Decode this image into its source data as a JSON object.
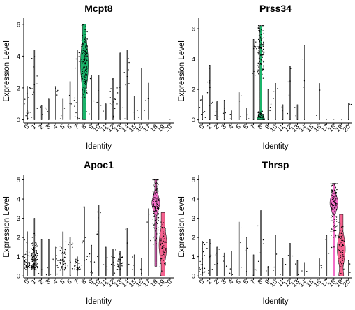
{
  "chart_data": [
    {
      "type": "violin",
      "title": "Mcpt8",
      "xlabel": "Identity",
      "ylabel": "Expression Level",
      "categories": [
        "0",
        "1",
        "2",
        "3",
        "4",
        "5",
        "6",
        "7",
        "8",
        "9",
        "10",
        "11",
        "12",
        "13",
        "14",
        "15",
        "16",
        "17",
        "18",
        "19",
        "20"
      ],
      "ylim": [
        -0.2,
        6.3
      ],
      "yticks": [
        0,
        2,
        4,
        6
      ],
      "colors": {
        "8": "#1bb46a"
      },
      "violins": [
        {
          "cluster": "8",
          "min": 0,
          "max": 6.0,
          "median": 3.5,
          "n": 170
        },
        {
          "cluster": "0",
          "min": 0,
          "max": 2.1,
          "n": 14
        },
        {
          "cluster": "1",
          "min": 0,
          "max": 4.4,
          "n": 12
        },
        {
          "cluster": "2",
          "min": 0,
          "max": 0.9,
          "n": 3
        },
        {
          "cluster": "3",
          "min": 0,
          "max": 1.3,
          "n": 3
        },
        {
          "cluster": "4",
          "min": 0,
          "max": 2.1,
          "n": 5
        },
        {
          "cluster": "5",
          "min": 0,
          "max": 1.3,
          "n": 3
        },
        {
          "cluster": "6",
          "min": 0,
          "max": 2.4,
          "n": 3
        },
        {
          "cluster": "7",
          "min": 0,
          "max": 4.4,
          "n": 14
        },
        {
          "cluster": "9",
          "min": 0,
          "max": 2.8,
          "n": 3
        },
        {
          "cluster": "10",
          "min": 0,
          "max": 2.8,
          "n": 3
        },
        {
          "cluster": "11",
          "min": 0,
          "max": 1.0,
          "n": 2
        },
        {
          "cluster": "12",
          "min": 0,
          "max": 2.6,
          "n": 12
        },
        {
          "cluster": "13",
          "min": 0,
          "max": 4.2,
          "n": 5
        },
        {
          "cluster": "14",
          "min": 0,
          "max": 4.4,
          "n": 8
        },
        {
          "cluster": "15",
          "min": 0,
          "max": 1.5,
          "n": 2
        },
        {
          "cluster": "16",
          "min": 0,
          "max": 3.2,
          "n": 2
        },
        {
          "cluster": "17",
          "min": 0,
          "max": 2.3,
          "n": 2
        }
      ]
    },
    {
      "type": "violin",
      "title": "Prss34",
      "xlabel": "Identity",
      "ylabel": "Expression Level",
      "categories": [
        "0",
        "1",
        "2",
        "3",
        "4",
        "5",
        "6",
        "7",
        "8",
        "9",
        "10",
        "11",
        "12",
        "13",
        "14",
        "15",
        "16",
        "17",
        "18",
        "19",
        "20"
      ],
      "ylim": [
        -0.2,
        6.6
      ],
      "yticks": [
        0,
        2,
        4,
        6
      ],
      "colors": {
        "8": "#1bb46a"
      },
      "violins": [
        {
          "cluster": "8",
          "min": 0,
          "max": 6.2,
          "median": 4.8,
          "n": 150,
          "shape": "bottom-heavy"
        },
        {
          "cluster": "0",
          "min": 0,
          "max": 1.6,
          "n": 8
        },
        {
          "cluster": "1",
          "min": 0,
          "max": 3.6,
          "n": 10
        },
        {
          "cluster": "2",
          "min": 0,
          "max": 1.2,
          "n": 3
        },
        {
          "cluster": "3",
          "min": 0,
          "max": 1.3,
          "n": 3
        },
        {
          "cluster": "4",
          "min": 0,
          "max": 0.6,
          "n": 2
        },
        {
          "cluster": "5",
          "min": 0,
          "max": 1.8,
          "n": 3
        },
        {
          "cluster": "6",
          "min": 0,
          "max": 0.8,
          "n": 2
        },
        {
          "cluster": "7",
          "min": 0,
          "max": 5.3,
          "n": 10
        },
        {
          "cluster": "9",
          "min": 0,
          "max": 2.0,
          "n": 3
        },
        {
          "cluster": "10",
          "min": 0,
          "max": 2.4,
          "n": 3
        },
        {
          "cluster": "11",
          "min": 0,
          "max": 1.0,
          "n": 2
        },
        {
          "cluster": "12",
          "min": 0,
          "max": 3.5,
          "n": 5
        },
        {
          "cluster": "13",
          "min": 0,
          "max": 1.0,
          "n": 2
        },
        {
          "cluster": "14",
          "min": 0,
          "max": 4.9,
          "n": 3
        },
        {
          "cluster": "16",
          "min": 0,
          "max": 2.4,
          "n": 2
        },
        {
          "cluster": "20",
          "min": 0,
          "max": 1.1,
          "n": 2
        }
      ]
    },
    {
      "type": "violin",
      "title": "Apoc1",
      "xlabel": "Identity",
      "ylabel": "Expression Level",
      "categories": [
        "0",
        "1",
        "2",
        "3",
        "4",
        "5",
        "6",
        "7",
        "8",
        "9",
        "10",
        "11",
        "12",
        "13",
        "14",
        "15",
        "16",
        "17",
        "18",
        "19",
        "20"
      ],
      "ylim": [
        -0.1,
        5.2
      ],
      "yticks": [
        0,
        1,
        2,
        3,
        4,
        5
      ],
      "colors": {
        "18": "#f26fc8",
        "19": "#f5628f"
      },
      "violins": [
        {
          "cluster": "18",
          "min": 0.5,
          "max": 5.0,
          "median": 3.8,
          "n": 140,
          "shape": "top-heavy"
        },
        {
          "cluster": "19",
          "min": 0,
          "max": 3.3,
          "median": 1.6,
          "n": 70
        },
        {
          "cluster": "0",
          "min": 0,
          "max": 2.3,
          "median": 0.9,
          "n": 40
        },
        {
          "cluster": "1",
          "min": 0,
          "max": 3.0,
          "median": 0.7,
          "n": 130,
          "shape": "bottom-heavy"
        },
        {
          "cluster": "2",
          "min": 0,
          "max": 1.9,
          "n": 3
        },
        {
          "cluster": "3",
          "min": 0,
          "max": 1.9,
          "n": 3
        },
        {
          "cluster": "4",
          "min": 0,
          "max": 1.5,
          "n": 10
        },
        {
          "cluster": "5",
          "min": 0,
          "max": 2.3,
          "n": 45
        },
        {
          "cluster": "6",
          "min": 0,
          "max": 2.0,
          "n": 10
        },
        {
          "cluster": "7",
          "min": 0,
          "max": 1.0,
          "n": 30
        },
        {
          "cluster": "8",
          "min": 0,
          "max": 3.6,
          "n": 8
        },
        {
          "cluster": "9",
          "min": 0,
          "max": 1.6,
          "n": 8
        },
        {
          "cluster": "10",
          "min": 0,
          "max": 3.7,
          "n": 8
        },
        {
          "cluster": "11",
          "min": 0,
          "max": 1.5,
          "n": 5
        },
        {
          "cluster": "12",
          "min": 0,
          "max": 1.4,
          "n": 8
        },
        {
          "cluster": "13",
          "min": 0,
          "max": 1.3,
          "n": 30
        },
        {
          "cluster": "14",
          "min": 0,
          "max": 2.5,
          "n": 3
        },
        {
          "cluster": "15",
          "min": 0,
          "max": 1.1,
          "n": 3
        },
        {
          "cluster": "16",
          "min": 0,
          "max": 0.9,
          "n": 3
        },
        {
          "cluster": "17",
          "min": 0,
          "max": 3.5,
          "n": 3
        }
      ]
    },
    {
      "type": "violin",
      "title": "Thrsp",
      "xlabel": "Identity",
      "ylabel": "Expression Level",
      "categories": [
        "0",
        "1",
        "2",
        "3",
        "4",
        "5",
        "6",
        "7",
        "8",
        "9",
        "10",
        "11",
        "12",
        "13",
        "14",
        "15",
        "16",
        "17",
        "18",
        "19",
        "20"
      ],
      "ylim": [
        -0.1,
        5.2
      ],
      "yticks": [
        0,
        1,
        2,
        3,
        4,
        5
      ],
      "colors": {
        "18": "#f26fc8",
        "19": "#f5628f"
      },
      "violins": [
        {
          "cluster": "18",
          "min": 0,
          "max": 4.8,
          "median": 3.8,
          "n": 130,
          "shape": "top-heavy"
        },
        {
          "cluster": "19",
          "min": 0,
          "max": 3.2,
          "median": 1.4,
          "n": 60
        },
        {
          "cluster": "0",
          "min": 0,
          "max": 1.8,
          "n": 20
        },
        {
          "cluster": "1",
          "min": 0,
          "max": 1.9,
          "n": 10
        },
        {
          "cluster": "2",
          "min": 0,
          "max": 1.5,
          "n": 5
        },
        {
          "cluster": "3",
          "min": 0,
          "max": 1.2,
          "n": 3
        },
        {
          "cluster": "4",
          "min": 0,
          "max": 1.3,
          "n": 3
        },
        {
          "cluster": "5",
          "min": 0,
          "max": 2.8,
          "n": 3
        },
        {
          "cluster": "6",
          "min": 0,
          "max": 2.0,
          "n": 3
        },
        {
          "cluster": "7",
          "min": 0,
          "max": 1.1,
          "n": 3
        },
        {
          "cluster": "8",
          "min": 0,
          "max": 3.4,
          "n": 5
        },
        {
          "cluster": "9",
          "min": 0,
          "max": 0.5,
          "n": 2
        },
        {
          "cluster": "10",
          "min": 0,
          "max": 2.1,
          "n": 3
        },
        {
          "cluster": "11",
          "min": 0,
          "max": 0.9,
          "n": 2
        },
        {
          "cluster": "12",
          "min": 0,
          "max": 1.7,
          "n": 2
        },
        {
          "cluster": "13",
          "min": 0,
          "max": 0.8,
          "n": 2
        },
        {
          "cluster": "14",
          "min": 0,
          "max": 0.7,
          "n": 2
        },
        {
          "cluster": "16",
          "min": 0,
          "max": 0.9,
          "n": 2
        },
        {
          "cluster": "17",
          "min": 0,
          "max": 2.1,
          "n": 2
        },
        {
          "cluster": "20",
          "min": 0,
          "max": 0.8,
          "n": 2
        }
      ]
    }
  ]
}
